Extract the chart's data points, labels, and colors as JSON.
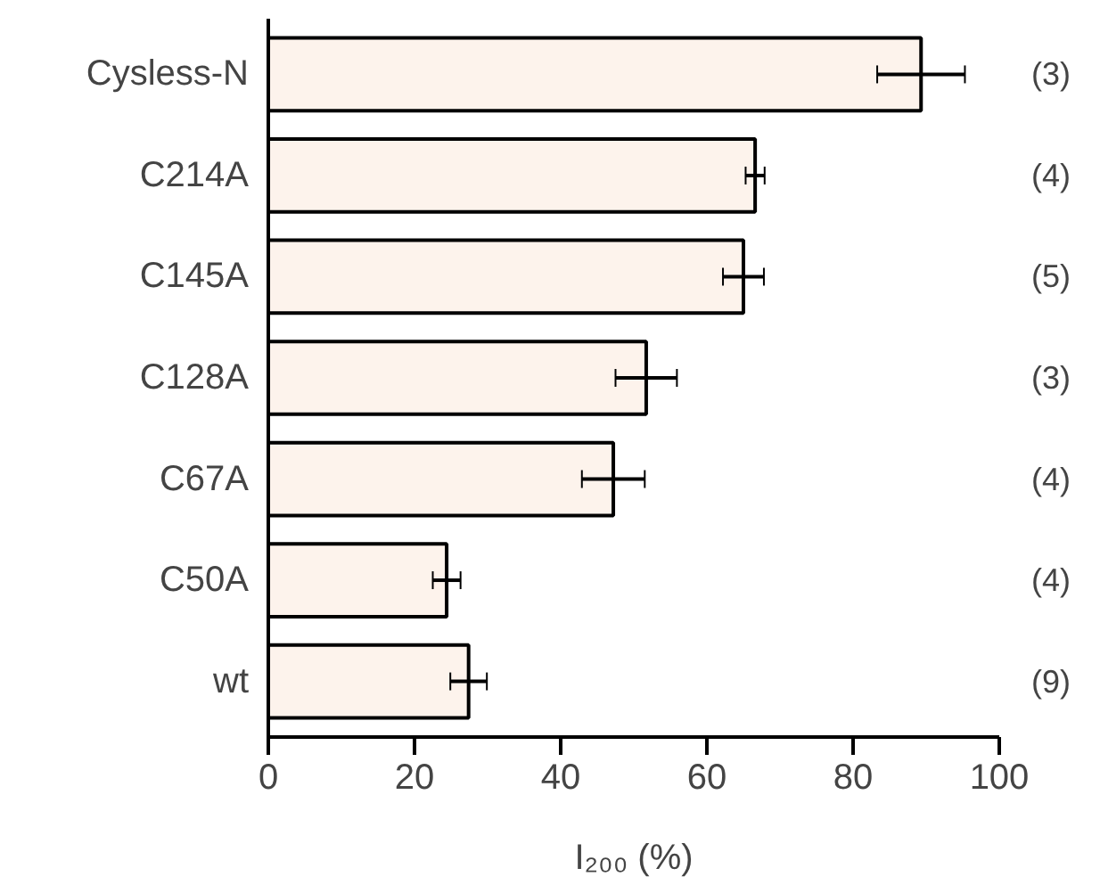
{
  "chart_data": {
    "type": "bar",
    "orientation": "horizontal",
    "categories": [
      "Cysless-N",
      "C214A",
      "C145A",
      "C128A",
      "C67A",
      "C50A",
      "wt"
    ],
    "values": [
      89.3,
      66.6,
      65,
      51.7,
      47.2,
      24.4,
      27.4
    ],
    "errors": [
      6,
      1.3,
      2.8,
      4.2,
      4.3,
      1.9,
      2.5
    ],
    "color": "#fdf3ec",
    "xlabel": "I₂₀₀ (%)",
    "xlim": [
      0,
      100
    ],
    "xticks": [
      0,
      20,
      40,
      60,
      80,
      100
    ],
    "annotations": [
      "(3)",
      "(4)",
      "(5)",
      "(3)",
      "(4)",
      "(4)",
      "(9)"
    ],
    "grid": false
  }
}
